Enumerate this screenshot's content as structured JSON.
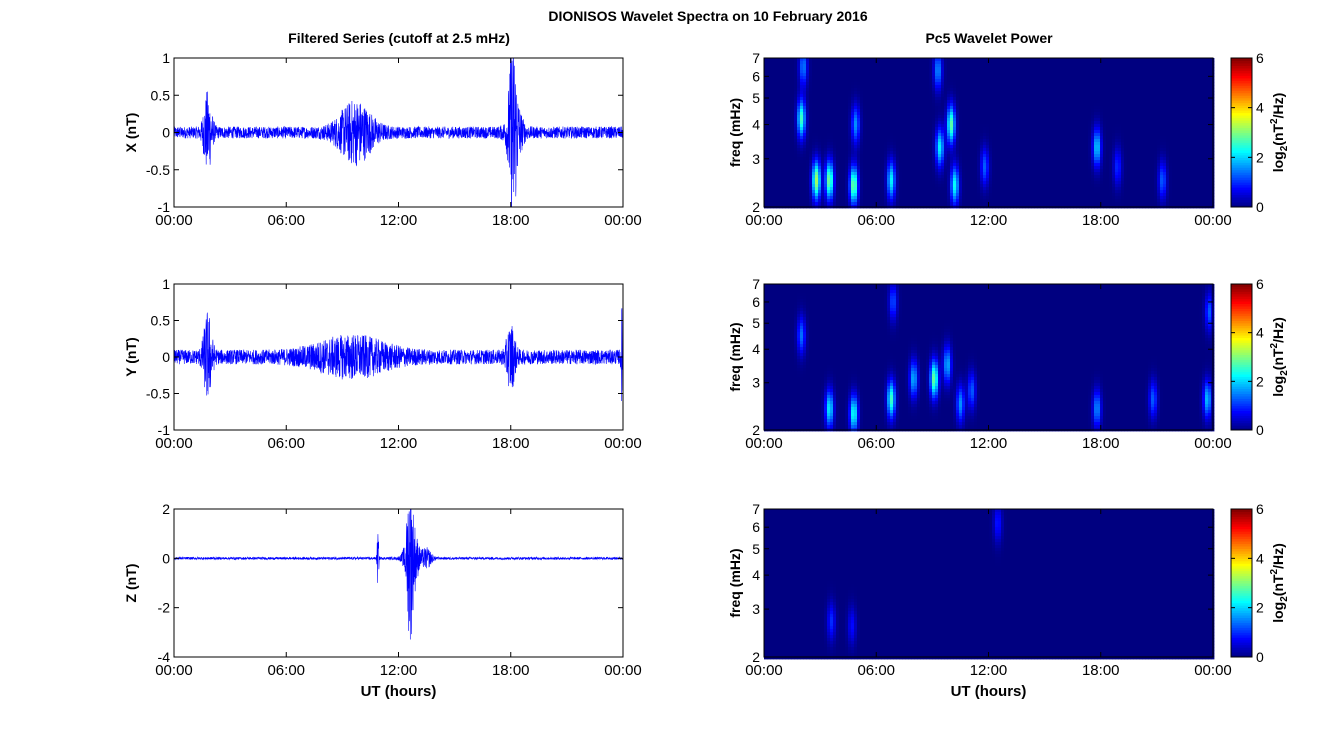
{
  "figure": {
    "title": "DIONISOS Wavelet Spectra on 10 February 2016",
    "left_title": "Filtered Series (cutoff at 2.5 mHz)",
    "right_title": "Pc5 Wavelet Power",
    "xlabel": "UT (hours)"
  },
  "chart_data": [
    {
      "type": "line",
      "panel": "X",
      "ylabel": "X (nT)",
      "ylim": [
        -1,
        1
      ],
      "yticks": [
        "1",
        "0.5",
        "0",
        "-0.5",
        "-1"
      ],
      "xlim": [
        0,
        24
      ],
      "xticks": [
        "00:00",
        "06:00",
        "12:00",
        "18:00",
        "00:00"
      ],
      "noise_amp": 0.08,
      "bursts": [
        {
          "x": 1.8,
          "w": 0.25,
          "amp": 0.5
        },
        {
          "x": 9.7,
          "w": 1.0,
          "amp": 0.38
        },
        {
          "x": 18.1,
          "w": 0.2,
          "amp": 0.9
        },
        {
          "x": 18.2,
          "w": 0.4,
          "amp": 0.45
        }
      ]
    },
    {
      "type": "line",
      "panel": "Y",
      "ylabel": "Y (nT)",
      "ylim": [
        -1,
        1
      ],
      "yticks": [
        "1",
        "0.5",
        "0",
        "-0.5",
        "-1"
      ],
      "xlim": [
        0,
        24
      ],
      "xticks": [
        "00:00",
        "06:00",
        "12:00",
        "18:00",
        "00:00"
      ],
      "noise_amp": 0.1,
      "bursts": [
        {
          "x": 1.8,
          "w": 0.25,
          "amp": 0.55
        },
        {
          "x": 9.5,
          "w": 2.2,
          "amp": 0.22
        },
        {
          "x": 18.0,
          "w": 0.25,
          "amp": 0.4
        },
        {
          "x": 23.95,
          "w": 0.06,
          "amp": 0.65
        }
      ]
    },
    {
      "type": "line",
      "panel": "Z",
      "ylabel": "Z (nT)",
      "ylim": [
        -4,
        2
      ],
      "yticks": [
        "2",
        "0",
        "-2",
        "-4"
      ],
      "xlim": [
        0,
        24
      ],
      "xticks": [
        "00:00",
        "06:00",
        "12:00",
        "18:00",
        "00:00"
      ],
      "xlabel": "UT (hours)",
      "noise_amp": 0.05,
      "bursts": [
        {
          "x": 12.7,
          "w": 0.35,
          "amp": 1.7
        },
        {
          "x": 12.6,
          "w": 0.15,
          "amp": 2.0
        },
        {
          "x": 10.9,
          "w": 0.05,
          "amp": 1.2
        },
        {
          "x": 13.5,
          "w": 0.3,
          "amp": 0.4
        }
      ]
    },
    {
      "type": "heatmap",
      "panel": "X",
      "ylabel": "freq (mHz)",
      "ylim": [
        2,
        7
      ],
      "yscale": "log",
      "yticks": [
        "2",
        "3",
        "4",
        "5",
        "6",
        "7"
      ],
      "xlim": [
        0,
        24
      ],
      "xticks": [
        "00:00",
        "06:00",
        "12:00",
        "18:00",
        "00:00"
      ],
      "colorbar": {
        "label": "log2(nT2/Hz)",
        "range": [
          0,
          6
        ],
        "ticks": [
          "0",
          "2",
          "4",
          "6"
        ],
        "colormap": "jet"
      },
      "blobs": [
        {
          "x": 2.0,
          "f": 4.2,
          "val": 2.6
        },
        {
          "x": 2.1,
          "f": 6.5,
          "val": 1.5
        },
        {
          "x": 2.8,
          "f": 2.5,
          "val": 3.2
        },
        {
          "x": 3.5,
          "f": 2.5,
          "val": 3.0
        },
        {
          "x": 4.8,
          "f": 2.4,
          "val": 3.0
        },
        {
          "x": 4.9,
          "f": 4.0,
          "val": 1.6
        },
        {
          "x": 6.8,
          "f": 2.5,
          "val": 2.2
        },
        {
          "x": 9.4,
          "f": 3.3,
          "val": 2.2
        },
        {
          "x": 10.0,
          "f": 4.0,
          "val": 2.8
        },
        {
          "x": 10.2,
          "f": 2.4,
          "val": 2.3
        },
        {
          "x": 9.3,
          "f": 6.3,
          "val": 1.6
        },
        {
          "x": 11.8,
          "f": 2.8,
          "val": 1.3
        },
        {
          "x": 17.8,
          "f": 3.3,
          "val": 2.0
        },
        {
          "x": 18.9,
          "f": 2.8,
          "val": 1.0
        },
        {
          "x": 21.3,
          "f": 2.5,
          "val": 1.3
        }
      ]
    },
    {
      "type": "heatmap",
      "panel": "Y",
      "ylabel": "freq (mHz)",
      "ylim": [
        2,
        7
      ],
      "yscale": "log",
      "yticks": [
        "2",
        "3",
        "4",
        "5",
        "6",
        "7"
      ],
      "xlim": [
        0,
        24
      ],
      "xticks": [
        "00:00",
        "06:00",
        "12:00",
        "18:00",
        "00:00"
      ],
      "colorbar": {
        "label": "log2(nT2/Hz)",
        "range": [
          0,
          6
        ],
        "ticks": [
          "0",
          "2",
          "4",
          "6"
        ],
        "colormap": "jet"
      },
      "blobs": [
        {
          "x": 2.0,
          "f": 4.5,
          "val": 1.4
        },
        {
          "x": 3.5,
          "f": 2.4,
          "val": 2.2
        },
        {
          "x": 4.8,
          "f": 2.3,
          "val": 2.4
        },
        {
          "x": 6.8,
          "f": 2.6,
          "val": 2.6
        },
        {
          "x": 8.0,
          "f": 3.1,
          "val": 1.8
        },
        {
          "x": 9.1,
          "f": 3.1,
          "val": 2.9
        },
        {
          "x": 9.8,
          "f": 3.5,
          "val": 1.8
        },
        {
          "x": 10.5,
          "f": 2.5,
          "val": 1.6
        },
        {
          "x": 11.1,
          "f": 2.8,
          "val": 1.3
        },
        {
          "x": 6.9,
          "f": 6.0,
          "val": 1.2
        },
        {
          "x": 17.8,
          "f": 2.4,
          "val": 1.6
        },
        {
          "x": 20.8,
          "f": 2.6,
          "val": 1.3
        },
        {
          "x": 23.7,
          "f": 2.6,
          "val": 1.9
        },
        {
          "x": 23.8,
          "f": 5.5,
          "val": 1.3
        }
      ]
    },
    {
      "type": "heatmap",
      "panel": "Z",
      "ylabel": "freq (mHz)",
      "ylim": [
        2,
        7
      ],
      "yscale": "log",
      "yticks": [
        "2",
        "3",
        "4",
        "5",
        "6",
        "7"
      ],
      "xlim": [
        0,
        24
      ],
      "xticks": [
        "00:00",
        "06:00",
        "12:00",
        "18:00",
        "00:00"
      ],
      "xlabel": "UT (hours)",
      "colorbar": {
        "label": "log2(nT2/Hz)",
        "range": [
          0,
          6
        ],
        "ticks": [
          "0",
          "2",
          "4",
          "6"
        ],
        "colormap": "jet"
      },
      "blobs": [
        {
          "x": 3.6,
          "f": 2.7,
          "val": 1.0
        },
        {
          "x": 4.7,
          "f": 2.6,
          "val": 0.8
        },
        {
          "x": 12.5,
          "f": 6.2,
          "val": 0.9
        }
      ]
    }
  ]
}
